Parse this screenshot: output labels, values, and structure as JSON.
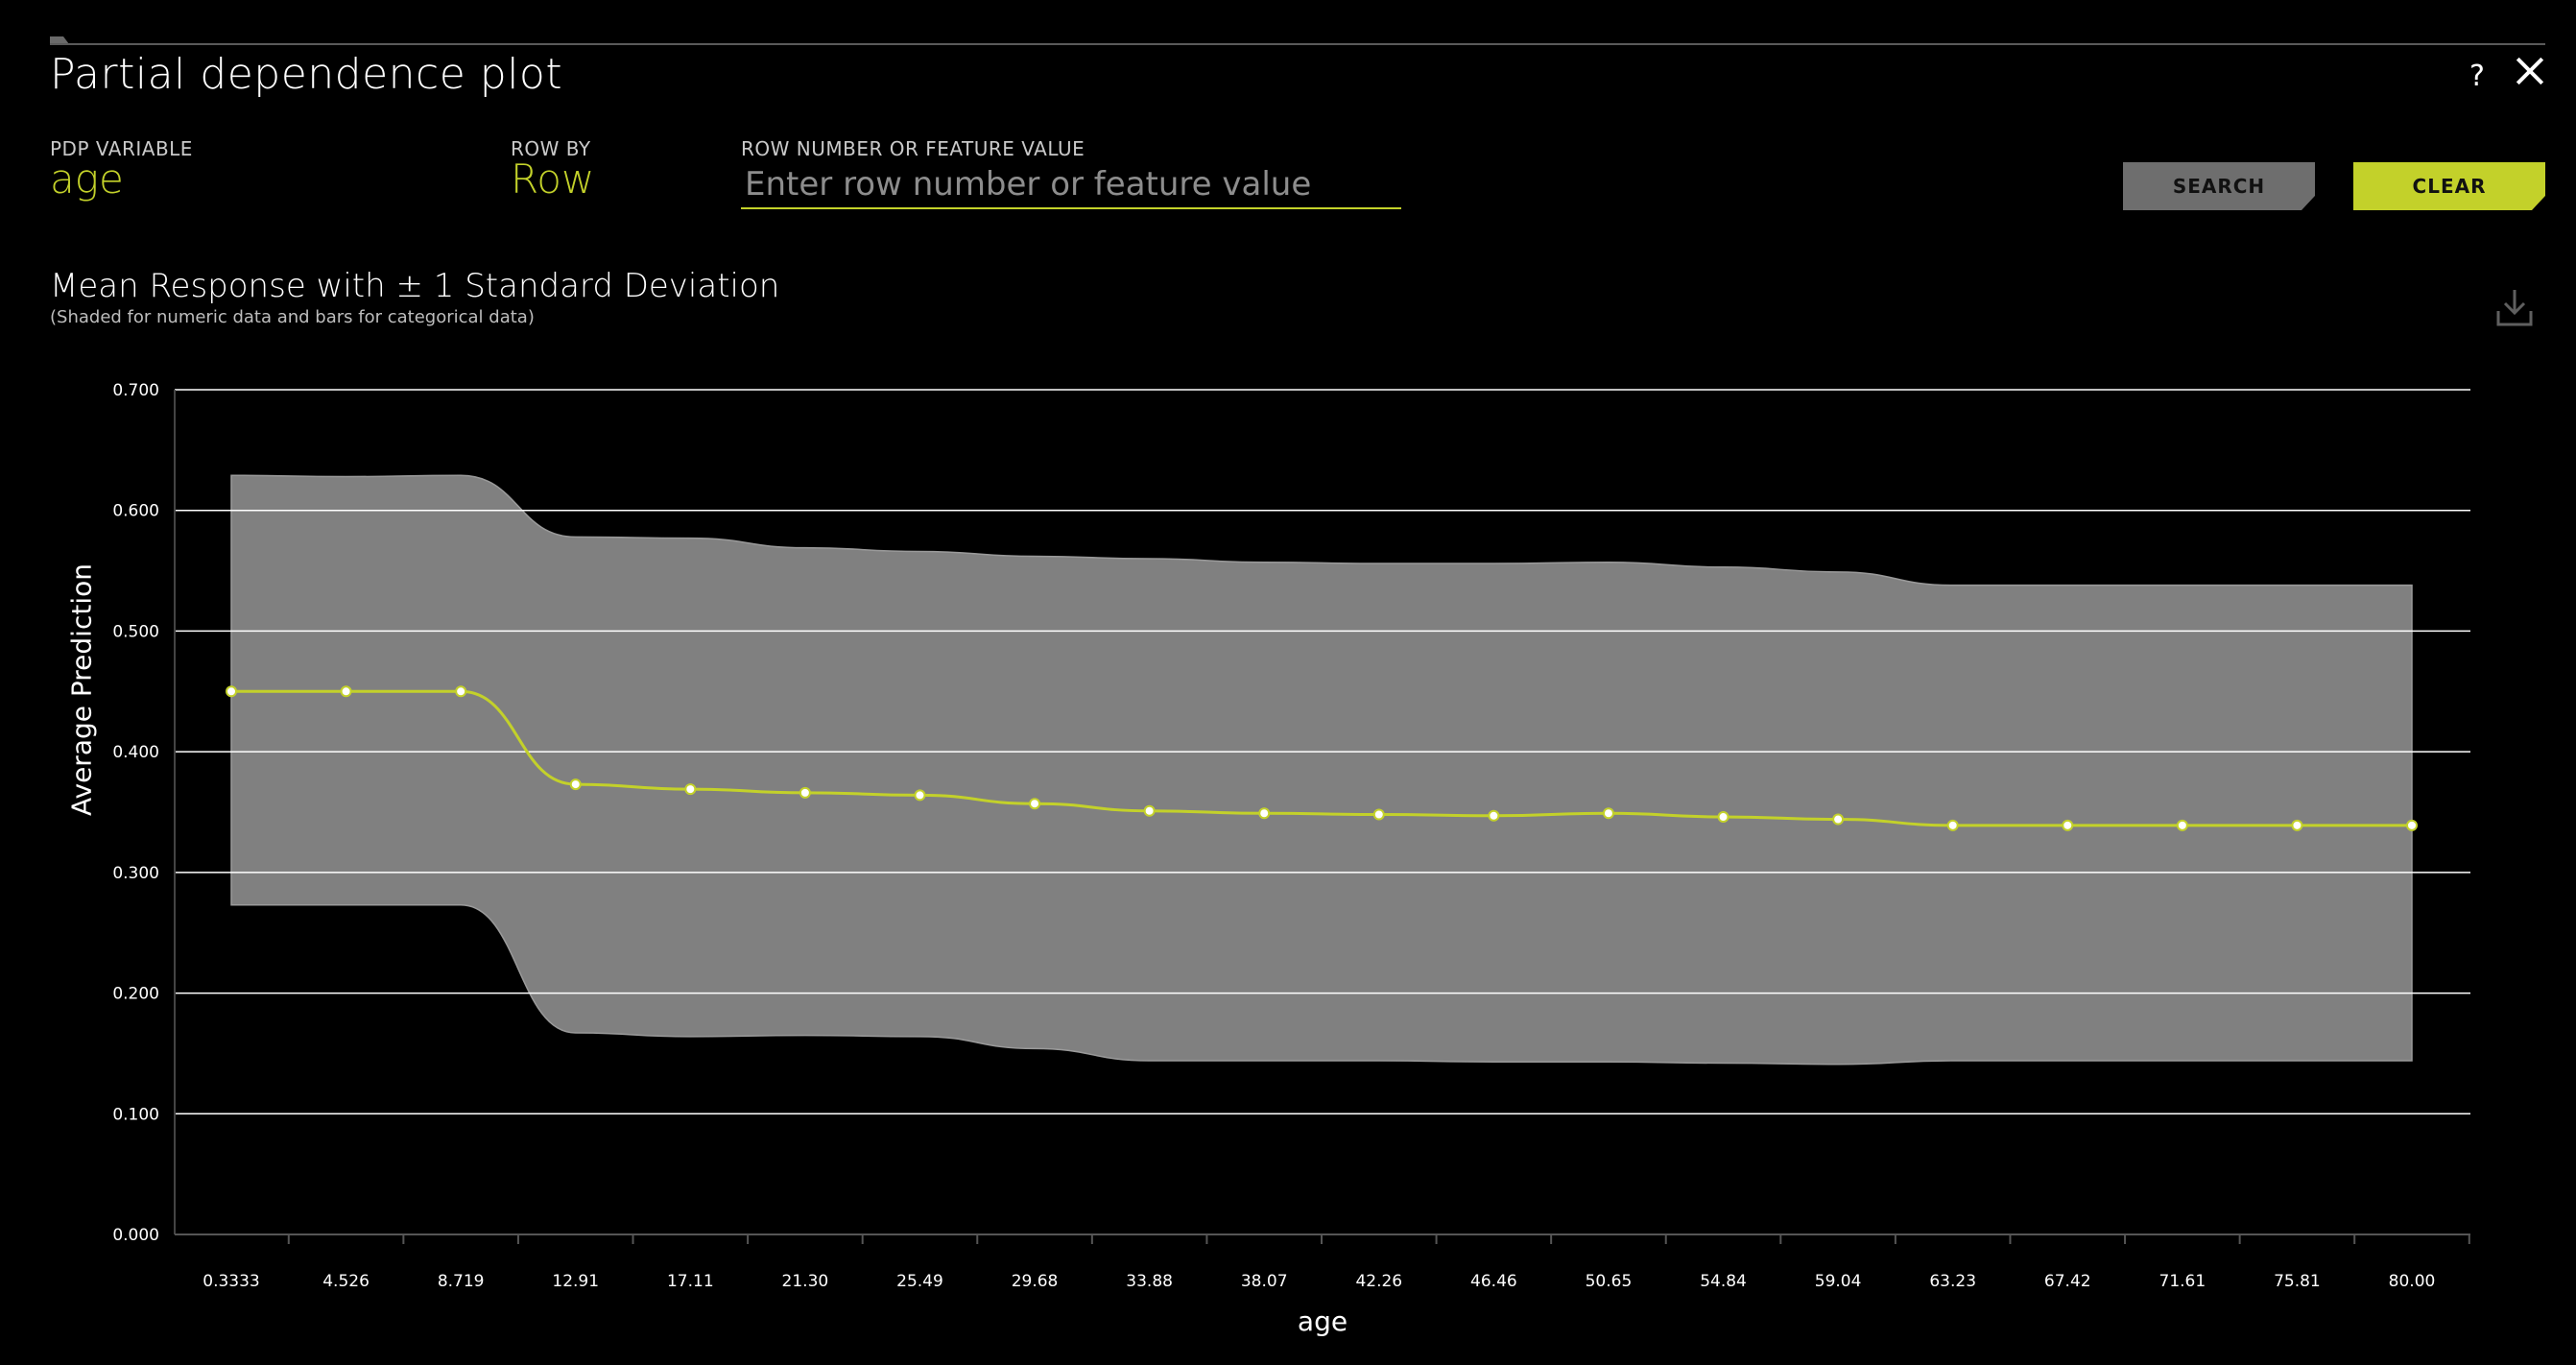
{
  "header": {
    "title": "Partial dependence plot",
    "help_label": "?",
    "close_icon": "close-icon"
  },
  "controls": {
    "pdp_variable_label": "PDP VARIABLE",
    "pdp_variable_value": "age",
    "row_by_label": "ROW BY",
    "row_by_value": "Row",
    "row_number_label": "ROW NUMBER OR FEATURE VALUE",
    "row_number_value": "",
    "row_number_placeholder": "Enter row number or feature value",
    "search_label": "SEARCH",
    "clear_label": "CLEAR"
  },
  "colors": {
    "accent": "#c3d12a",
    "band": "#808080",
    "background": "#000000"
  },
  "chart_data": {
    "type": "line",
    "title": "Mean Response with ± 1 Standard Deviation",
    "subtitle": "(Shaded for numeric data and bars for categorical data)",
    "xlabel": "age",
    "ylabel": "Average Prediction",
    "ylim": [
      0,
      0.7
    ],
    "yticks": [
      "0.000",
      "0.100",
      "0.200",
      "0.300",
      "0.400",
      "0.500",
      "0.600",
      "0.700"
    ],
    "grid": true,
    "categories": [
      "0.3333",
      "4.526",
      "8.719",
      "12.91",
      "17.11",
      "21.30",
      "25.49",
      "29.68",
      "33.88",
      "38.07",
      "42.26",
      "46.46",
      "50.65",
      "54.84",
      "59.04",
      "63.23",
      "67.42",
      "71.61",
      "75.81",
      "80.00"
    ],
    "series": [
      {
        "values": [
          0.45,
          0.45,
          0.45,
          0.373,
          0.369,
          0.366,
          0.364,
          0.357,
          0.351,
          0.349,
          0.348,
          0.347,
          0.349,
          0.346,
          0.344,
          0.339,
          0.339,
          0.339,
          0.339,
          0.339
        ]
      }
    ],
    "band_upper": [
      0.629,
      0.628,
      0.629,
      0.578,
      0.577,
      0.569,
      0.566,
      0.562,
      0.56,
      0.557,
      0.556,
      0.556,
      0.557,
      0.553,
      0.549,
      0.538,
      0.538,
      0.538,
      0.538,
      0.538
    ],
    "band_lower": [
      0.273,
      0.273,
      0.273,
      0.167,
      0.164,
      0.165,
      0.164,
      0.154,
      0.144,
      0.144,
      0.144,
      0.143,
      0.143,
      0.142,
      0.141,
      0.144,
      0.144,
      0.144,
      0.144,
      0.144
    ]
  },
  "icons": {
    "download": "download-icon"
  }
}
